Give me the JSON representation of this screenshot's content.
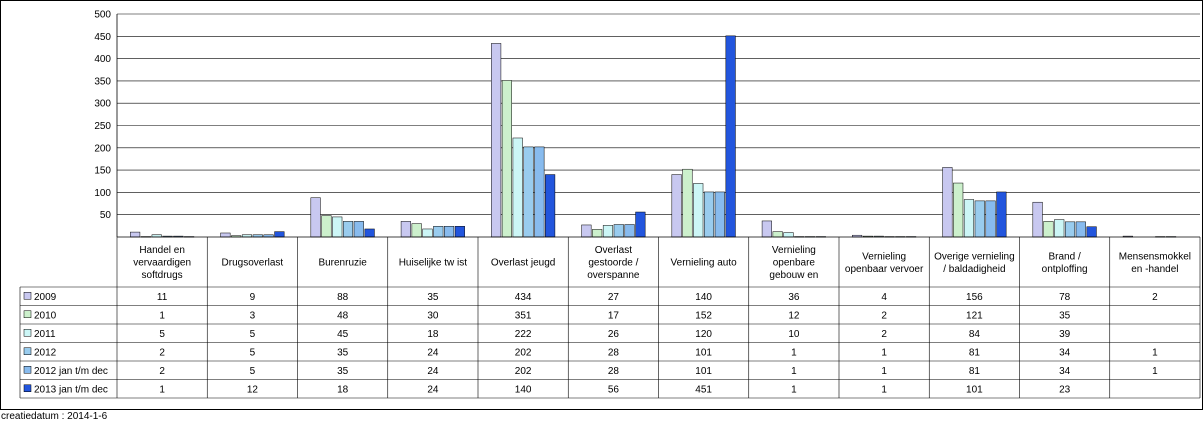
{
  "chart_data": {
    "type": "bar",
    "ylim": [
      0,
      500
    ],
    "yticks": [
      50,
      100,
      150,
      200,
      250,
      300,
      350,
      400,
      450,
      500
    ],
    "grid": true,
    "categories": [
      [
        "Handel en",
        "vervaardigen",
        "softdrugs"
      ],
      [
        "Drugsoverlast"
      ],
      [
        "Burenruzie"
      ],
      [
        "Huiselijke tw ist"
      ],
      [
        "Overlast jeugd"
      ],
      [
        "Overlast",
        "gestoorde /",
        "overspanne"
      ],
      [
        "Vernieling auto"
      ],
      [
        "Vernieling",
        "openbare",
        "gebouw en"
      ],
      [
        "Vernieling",
        "openbaar vervoer"
      ],
      [
        "Overige vernieling",
        "/ baldadigheid"
      ],
      [
        "Brand /",
        "ontploffing"
      ],
      [
        "Mensensmokkel",
        "en -handel"
      ]
    ],
    "series": [
      {
        "name": "2009",
        "color": "#c8c8f0",
        "values": [
          "11",
          "9",
          "88",
          "35",
          "434",
          "27",
          "140",
          "36",
          "4",
          "156",
          "78",
          "2"
        ]
      },
      {
        "name": "2010",
        "color": "#ccf0cc",
        "values": [
          "1",
          "3",
          "48",
          "30",
          "351",
          "17",
          "152",
          "12",
          "2",
          "121",
          "35",
          ""
        ]
      },
      {
        "name": "2011",
        "color": "#ccf6f6",
        "values": [
          "5",
          "5",
          "45",
          "18",
          "222",
          "26",
          "120",
          "10",
          "2",
          "84",
          "39",
          ""
        ]
      },
      {
        "name": "2012",
        "color": "#99ccee",
        "values": [
          "2",
          "5",
          "35",
          "24",
          "202",
          "28",
          "101",
          "1",
          "1",
          "81",
          "34",
          "1"
        ]
      },
      {
        "name": "2012  jan t/m dec",
        "color": "#88bbee",
        "values": [
          "2",
          "5",
          "35",
          "24",
          "202",
          "28",
          "101",
          "1",
          "1",
          "81",
          "34",
          "1"
        ]
      },
      {
        "name": "2013  jan t/m dec",
        "color": "#2255dd",
        "values": [
          "1",
          "12",
          "18",
          "24",
          "140",
          "56",
          "451",
          "1",
          "1",
          "101",
          "23",
          ""
        ]
      }
    ]
  },
  "footer": "creatiedatum : 2014-1-6"
}
